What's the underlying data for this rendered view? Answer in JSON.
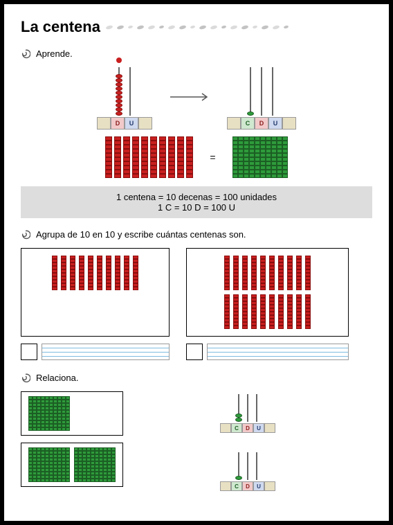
{
  "title": "La centena",
  "sections": {
    "aprende": {
      "label": "Aprende.",
      "base_labels": {
        "c": "C",
        "d": "D",
        "u": "U"
      }
    },
    "agrupa": {
      "label": "Agrupa de 10 en 10 y escribe cuántas centenas son."
    },
    "relaciona": {
      "label": "Relaciona."
    }
  },
  "grey_box": {
    "line1": "1 centena = 10 decenas = 100 unidades",
    "line2": "1 C = 10 D = 100 U"
  },
  "equals": "=",
  "colors": {
    "red_fill": "#c91f1f",
    "red_border": "#8a0e0e",
    "green_fill": "#2e9b3b",
    "green_border": "#1c5e24",
    "grey_bg": "#dddddd",
    "base_c": "#cfe8cf",
    "base_d": "#f2c9c9",
    "base_u": "#cfd9ef",
    "base_side": "#e8e0c3",
    "line_blue": "#7fbbe0"
  },
  "aprende_diagram": {
    "left_abacus": {
      "rods": [
        "D",
        "U"
      ],
      "d_beads": 10,
      "u_beads": 0,
      "bead_color": "red"
    },
    "right_abacus": {
      "rods": [
        "C",
        "D",
        "U"
      ],
      "c_beads": 1,
      "d_beads": 0,
      "u_beads": 0,
      "bead_color": "green"
    },
    "tens_count": 10
  },
  "exercise": {
    "box1": {
      "rows": 1,
      "sticks_per_row": 10
    },
    "box2": {
      "rows": 2,
      "sticks_per_row": 10
    }
  },
  "relaciona_diagram": {
    "left": [
      {
        "hundreds": 1
      },
      {
        "hundreds": 2
      }
    ],
    "right": [
      {
        "rods": [
          "C",
          "D",
          "U"
        ],
        "c_beads": 2
      },
      {
        "rods": [
          "C",
          "D",
          "U"
        ],
        "c_beads": 1
      }
    ]
  }
}
